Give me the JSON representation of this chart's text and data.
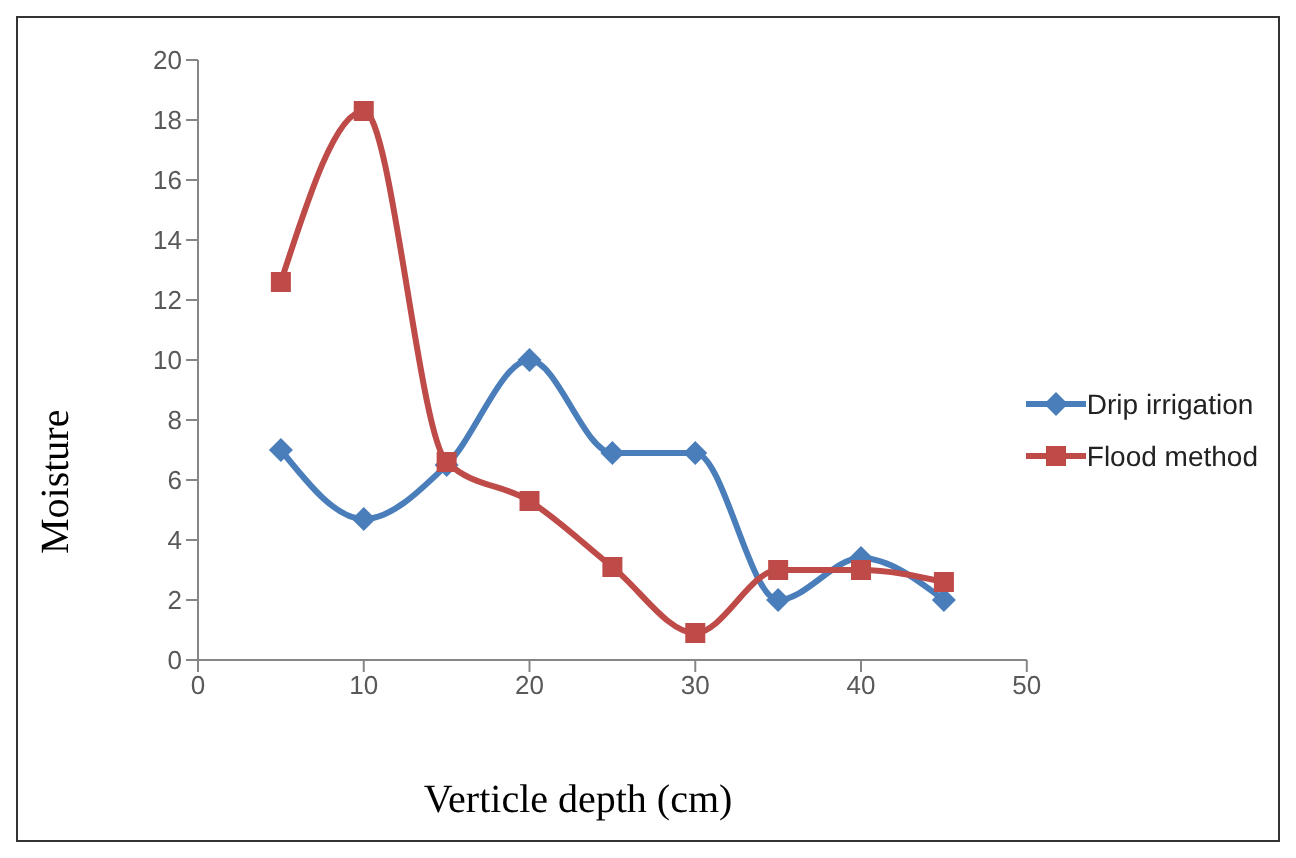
{
  "chart_data": {
    "type": "line",
    "xlabel": "Verticle depth (cm)",
    "ylabel": "Moisture",
    "x": [
      5,
      10,
      15,
      20,
      25,
      30,
      35,
      40,
      45
    ],
    "series": [
      {
        "name": "Drip irrigation",
        "color": "#4a7ebb",
        "marker": "diamond",
        "values": [
          7,
          4.7,
          6.5,
          10,
          6.9,
          6.9,
          2,
          3.4,
          2
        ]
      },
      {
        "name": "Flood method",
        "color": "#be4b48",
        "marker": "square",
        "values": [
          12.6,
          18.3,
          6.6,
          5.3,
          3.1,
          0.9,
          3,
          3,
          2.6
        ]
      }
    ],
    "xlim": [
      0,
      50
    ],
    "xticks": [
      0,
      10,
      20,
      30,
      40,
      50
    ],
    "ylim": [
      0,
      20
    ],
    "yticks": [
      0,
      2,
      4,
      6,
      8,
      10,
      12,
      14,
      16,
      18,
      20
    ],
    "legend": "right"
  }
}
